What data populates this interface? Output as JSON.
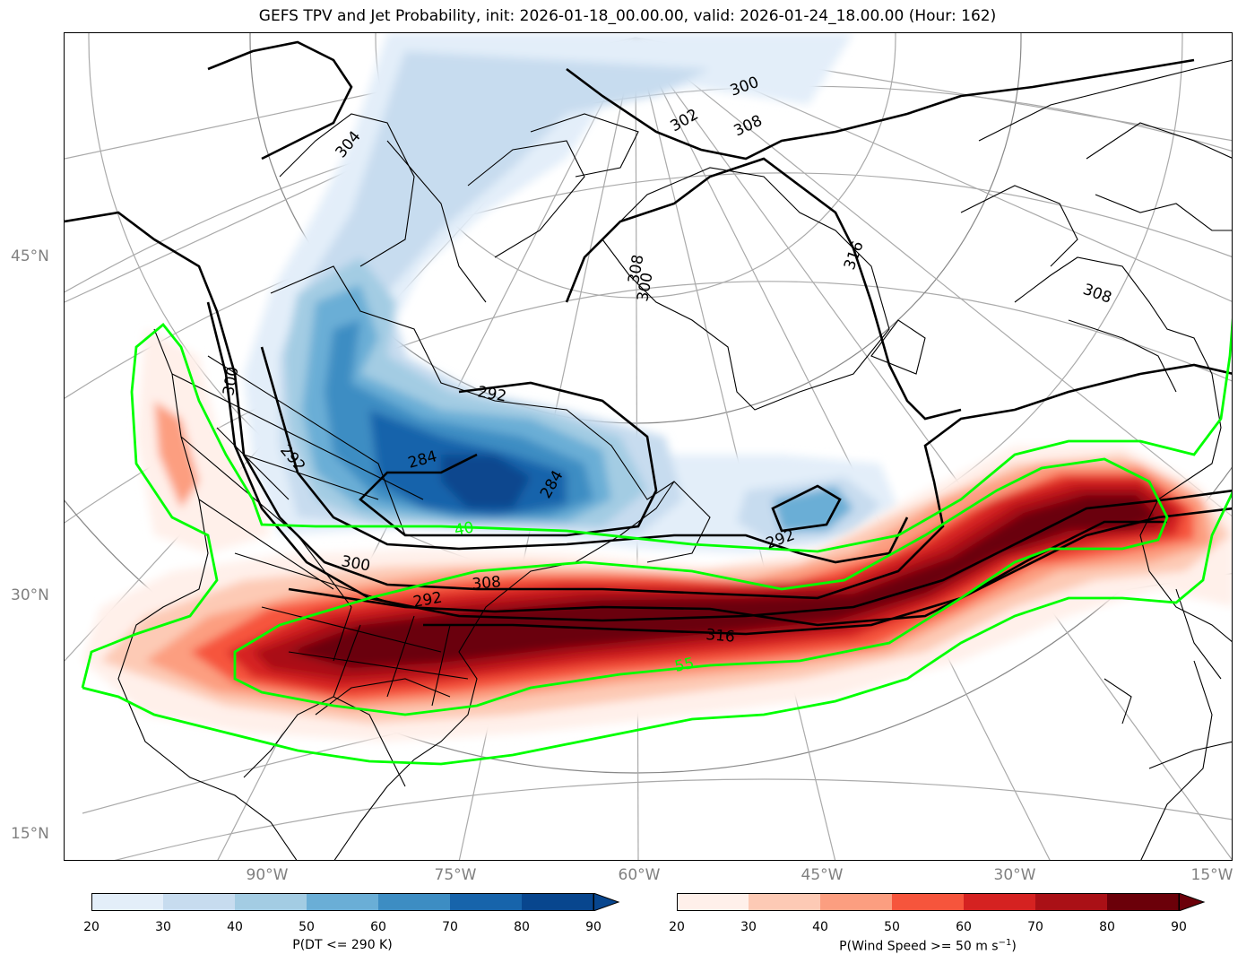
{
  "title": "GEFS TPV and Jet Probability, init: 2026-01-18_00.00.00, valid: 2026-01-24_18.00.00 (Hour: 162)",
  "lat_labels": [
    "45°N",
    "30°N",
    "15°N"
  ],
  "lon_labels": [
    "90°W",
    "75°W",
    "60°W",
    "45°W",
    "30°W",
    "15°W"
  ],
  "contour_labels": {
    "dt": [
      "300",
      "304",
      "300",
      "292",
      "292",
      "284",
      "284",
      "292",
      "300",
      "308",
      "316",
      "308",
      "308",
      "302",
      "300",
      "292",
      "316",
      "308"
    ],
    "jet": [
      "40",
      "55"
    ]
  },
  "colorbar_dt": {
    "label": "P(DT <= 290 K)",
    "ticks": [
      "20",
      "30",
      "40",
      "50",
      "60",
      "70",
      "80",
      "90"
    ],
    "colors": [
      "#e3eef9",
      "#c7dcef",
      "#a3cce3",
      "#6aaed6",
      "#3d8dc3",
      "#1764ab",
      "#08468e"
    ]
  },
  "colorbar_wind": {
    "label_prefix": "P(Wind Speed >= 50 m s",
    "label_sup": "−1",
    "label_suffix": ")",
    "ticks": [
      "20",
      "30",
      "40",
      "50",
      "60",
      "70",
      "80",
      "90"
    ],
    "colors": [
      "#fff0ea",
      "#fdcab5",
      "#fc9e80",
      "#f6553c",
      "#d52221",
      "#aa1016",
      "#6b0009"
    ]
  },
  "colors": {
    "jet_contour": "#00ff00",
    "dt_contour": "#000000",
    "graticule": "#aaaaaa",
    "coast": "#000000"
  }
}
